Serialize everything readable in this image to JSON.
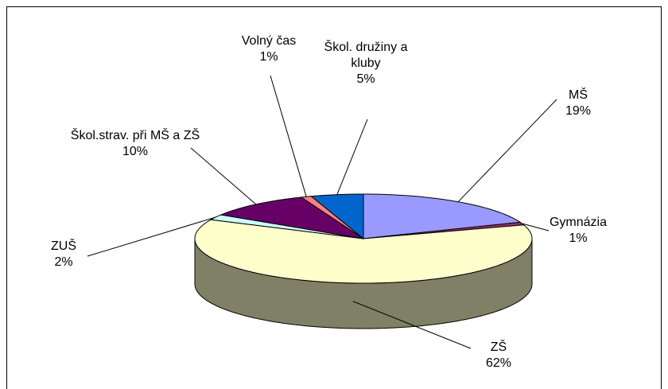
{
  "chart_data": {
    "type": "pie3d",
    "categories": [
      "MŠ",
      "Gymnázia",
      "ZŠ",
      "ZUŠ",
      "Škol.strav. při MŠ a ZŠ",
      "Volný čas",
      "Škol. družiny a kluby"
    ],
    "values": [
      19,
      1,
      62,
      2,
      10,
      1,
      5
    ],
    "value_labels": [
      "19%",
      "1%",
      "62%",
      "2%",
      "10%",
      "1%",
      "5%"
    ],
    "colors": [
      "#9999ff",
      "#993366",
      "#ffffcc",
      "#ccffff",
      "#660066",
      "#ff8080",
      "#0066cc"
    ]
  }
}
